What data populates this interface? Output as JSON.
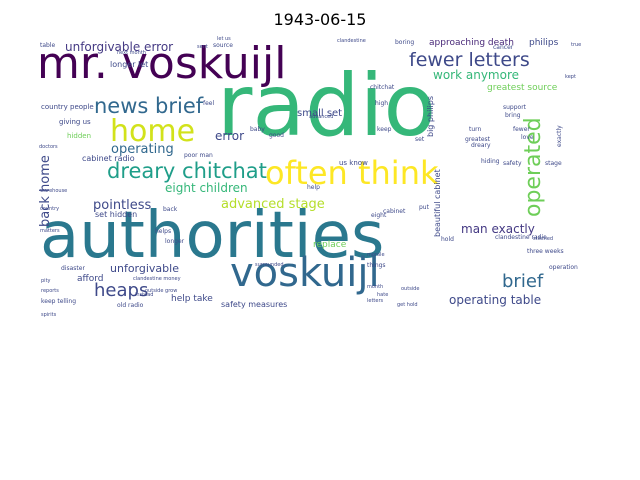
{
  "title": "1943-06-15",
  "words": [
    {
      "text": "authorities",
      "size": 64,
      "color": "#2a788e"
    },
    {
      "text": "radio",
      "size": 86,
      "color": "#35b779"
    },
    {
      "text": "mr. voskuijl",
      "size": 44,
      "color": "#440154"
    },
    {
      "text": "voskuijl",
      "size": 40,
      "color": "#31688e"
    },
    {
      "text": "home",
      "size": 30,
      "color": "#d2e21b"
    },
    {
      "text": "often think",
      "size": 32,
      "color": "#fde725"
    },
    {
      "text": "dreary chitchat",
      "size": 21,
      "color": "#1f9e89"
    },
    {
      "text": "news brief",
      "size": 21,
      "color": "#31688e"
    },
    {
      "text": "operated",
      "size": 22,
      "color": "#6ece58"
    },
    {
      "text": "fewer letters",
      "size": 19,
      "color": "#3e4989"
    },
    {
      "text": "heaps",
      "size": 18,
      "color": "#3e4989"
    },
    {
      "text": "brief",
      "size": 18,
      "color": "#31688e"
    },
    {
      "text": "unforgivable error",
      "size": 12,
      "color": "#443983"
    },
    {
      "text": "work anymore",
      "size": 12,
      "color": "#35b779"
    },
    {
      "text": "operating",
      "size": 13,
      "color": "#31688e"
    },
    {
      "text": "advanced stage",
      "size": 13,
      "color": "#b5de2b"
    },
    {
      "text": "back home",
      "size": 13,
      "color": "#3e4989"
    },
    {
      "text": "pointless",
      "size": 13,
      "color": "#3e4989"
    },
    {
      "text": "eight children",
      "size": 12,
      "color": "#35b779"
    },
    {
      "text": "man exactly",
      "size": 12,
      "color": "#443983"
    },
    {
      "text": "operating table",
      "size": 12,
      "color": "#3e4989"
    },
    {
      "text": "unforgivable",
      "size": 11,
      "color": "#3e4989"
    },
    {
      "text": "error",
      "size": 12,
      "color": "#3e4989"
    },
    {
      "text": "small set",
      "size": 10,
      "color": "#3e4989"
    },
    {
      "text": "greatest source",
      "size": 9,
      "color": "#6ece58"
    },
    {
      "text": "approaching death",
      "size": 9,
      "color": "#482878"
    },
    {
      "text": "philips",
      "size": 9,
      "color": "#3e4989"
    },
    {
      "text": "cabinet radio",
      "size": 8,
      "color": "#3e4989"
    },
    {
      "text": "safety measures",
      "size": 8,
      "color": "#3e4989"
    },
    {
      "text": "help take",
      "size": 9,
      "color": "#3e4989"
    },
    {
      "text": "afford",
      "size": 9,
      "color": "#3e4989"
    },
    {
      "text": "replace",
      "size": 9,
      "color": "#6ece58"
    },
    {
      "text": "set hidden",
      "size": 8,
      "color": "#3e4989"
    },
    {
      "text": "beautiful cabinet",
      "size": 8,
      "color": "#3e4989"
    },
    {
      "text": "big philips",
      "size": 8,
      "color": "#3e4989"
    },
    {
      "text": "longer let",
      "size": 8,
      "color": "#3e4989"
    },
    {
      "text": "country people",
      "size": 7,
      "color": "#3e4989"
    },
    {
      "text": "giving us",
      "size": 7,
      "color": "#3e4989"
    },
    {
      "text": "hidden",
      "size": 7,
      "color": "#6ece58"
    },
    {
      "text": "us know",
      "size": 7,
      "color": "#3e4989"
    },
    {
      "text": "clandestine radio",
      "size": 6,
      "color": "#3e4989"
    },
    {
      "text": "disaster",
      "size": 6,
      "color": "#3e4989"
    },
    {
      "text": "old radio",
      "size": 6,
      "color": "#3e4989"
    },
    {
      "text": "three weeks",
      "size": 6,
      "color": "#3e4989"
    },
    {
      "text": "keep telling",
      "size": 6,
      "color": "#3e4989"
    },
    {
      "text": "operation",
      "size": 6,
      "color": "#3e4989"
    },
    {
      "text": "next month",
      "size": 5,
      "color": "#3e4989"
    },
    {
      "text": "boring",
      "size": 6,
      "color": "#3e4989"
    },
    {
      "text": "cancer",
      "size": 6,
      "color": "#3e4989"
    },
    {
      "text": "doctors",
      "size": 5,
      "color": "#3e4989"
    },
    {
      "text": "table",
      "size": 6,
      "color": "#3e4989"
    },
    {
      "text": "source",
      "size": 6,
      "color": "#3e4989"
    },
    {
      "text": "let us",
      "size": 5,
      "color": "#3e4989"
    },
    {
      "text": "clandestine",
      "size": 5,
      "color": "#3e4989"
    },
    {
      "text": "chitchat",
      "size": 6,
      "color": "#3e4989"
    },
    {
      "text": "high",
      "size": 6,
      "color": "#3e4989"
    },
    {
      "text": "good",
      "size": 6,
      "color": "#3e4989"
    },
    {
      "text": "feel",
      "size": 6,
      "color": "#3e4989"
    },
    {
      "text": "baby",
      "size": 6,
      "color": "#3e4989"
    },
    {
      "text": "keep",
      "size": 6,
      "color": "#3e4989"
    },
    {
      "text": "turn",
      "size": 6,
      "color": "#3e4989"
    },
    {
      "text": "fewer",
      "size": 6,
      "color": "#3e4989"
    },
    {
      "text": "exactly",
      "size": 6,
      "color": "#3e4989"
    },
    {
      "text": "love",
      "size": 6,
      "color": "#3e4989"
    },
    {
      "text": "greatest",
      "size": 6,
      "color": "#3e4989"
    },
    {
      "text": "dreary",
      "size": 6,
      "color": "#3e4989"
    },
    {
      "text": "help",
      "size": 6,
      "color": "#3e4989"
    },
    {
      "text": "helps",
      "size": 6,
      "color": "#3e4989"
    },
    {
      "text": "longer",
      "size": 6,
      "color": "#3e4989"
    },
    {
      "text": "back",
      "size": 6,
      "color": "#3e4989"
    },
    {
      "text": "matters",
      "size": 5,
      "color": "#3e4989"
    },
    {
      "text": "country",
      "size": 5,
      "color": "#3e4989"
    },
    {
      "text": "pity",
      "size": 5,
      "color": "#3e4989"
    },
    {
      "text": "reports",
      "size": 5,
      "color": "#3e4989"
    },
    {
      "text": "things",
      "size": 6,
      "color": "#3e4989"
    },
    {
      "text": "eight",
      "size": 6,
      "color": "#3e4989"
    },
    {
      "text": "put",
      "size": 6,
      "color": "#3e4989"
    },
    {
      "text": "hold",
      "size": 6,
      "color": "#3e4989"
    },
    {
      "text": "hiding",
      "size": 6,
      "color": "#3e4989"
    },
    {
      "text": "stage",
      "size": 6,
      "color": "#3e4989"
    },
    {
      "text": "safety",
      "size": 6,
      "color": "#3e4989"
    },
    {
      "text": "set",
      "size": 6,
      "color": "#3e4989"
    },
    {
      "text": "month",
      "size": 5,
      "color": "#3e4989"
    },
    {
      "text": "hate",
      "size": 5,
      "color": "#3e4989"
    },
    {
      "text": "letters",
      "size": 5,
      "color": "#3e4989"
    },
    {
      "text": "bring",
      "size": 6,
      "color": "#3e4989"
    },
    {
      "text": "support",
      "size": 6,
      "color": "#3e4989"
    },
    {
      "text": "kept",
      "size": 5,
      "color": "#3e4989"
    },
    {
      "text": "true",
      "size": 5,
      "color": "#3e4989"
    },
    {
      "text": "advanced",
      "size": 5,
      "color": "#3e4989"
    },
    {
      "text": "surrounded",
      "size": 5,
      "color": "#3e4989"
    },
    {
      "text": "outside grow",
      "size": 5,
      "color": "#3e4989"
    },
    {
      "text": "clandestine money",
      "size": 5,
      "color": "#3e4989"
    },
    {
      "text": "instead",
      "size": 5,
      "color": "#3e4989"
    },
    {
      "text": "outside",
      "size": 5,
      "color": "#3e4989"
    },
    {
      "text": "get hold",
      "size": 5,
      "color": "#3e4989"
    },
    {
      "text": "cabinet",
      "size": 6,
      "color": "#3e4989"
    },
    {
      "text": "poor man",
      "size": 6,
      "color": "#3e4989"
    },
    {
      "text": "morale",
      "size": 5,
      "color": "#3e4989"
    },
    {
      "text": "stitched",
      "size": 5,
      "color": "#3e4989"
    },
    {
      "text": "sent",
      "size": 5,
      "color": "#3e4989"
    },
    {
      "text": "spirits",
      "size": 5,
      "color": "#3e4989"
    },
    {
      "text": "warehouse",
      "size": 5,
      "color": "#3e4989"
    }
  ]
}
